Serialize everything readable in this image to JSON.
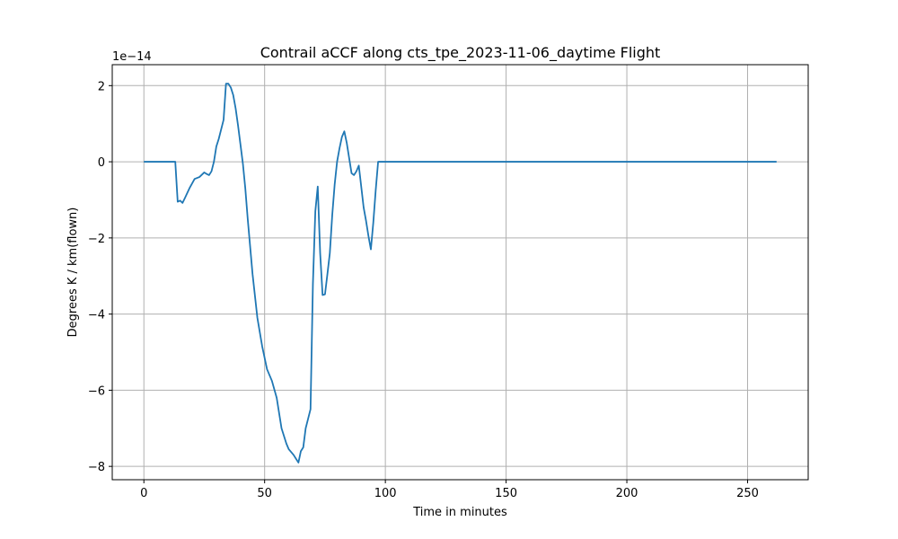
{
  "chart_data": {
    "type": "line",
    "title": "Contrail aCCF along cts_tpe_2023-11-06_daytime Flight",
    "xlabel": "Time in minutes",
    "ylabel": "Degrees K / km(flown)",
    "offset_label": "1e−14",
    "xlim": [
      -13.1,
      275.1
    ],
    "ylim": [
      -8.35,
      2.55
    ],
    "x_ticks": [
      0,
      50,
      100,
      150,
      200,
      250
    ],
    "x_tick_labels": [
      "0",
      "50",
      "100",
      "150",
      "200",
      "250"
    ],
    "y_ticks": [
      -8,
      -6,
      -4,
      -2,
      0,
      2
    ],
    "y_tick_labels": [
      "−8",
      "−6",
      "−4",
      "−2",
      "0",
      "2"
    ],
    "grid": true,
    "colors": {
      "line": "#1f77b4",
      "grid": "#b0b0b0",
      "axes": "#000000"
    },
    "series": [
      {
        "x": [
          0,
          13,
          14,
          15,
          16,
          17,
          19,
          21,
          23,
          25,
          26,
          27,
          28,
          29,
          30,
          31,
          33,
          34,
          35,
          36,
          37,
          38,
          39,
          40,
          41,
          42,
          43,
          45,
          47,
          49,
          51,
          53,
          55,
          56,
          57,
          59,
          60,
          62,
          64,
          65,
          66,
          67,
          68,
          69,
          70,
          71,
          72,
          73,
          74,
          75,
          76,
          77,
          78,
          79,
          80,
          81,
          82,
          83,
          84,
          85,
          86,
          87,
          88,
          89,
          90,
          91,
          92,
          93,
          94,
          95,
          96,
          97,
          98,
          99,
          100,
          120,
          150,
          200,
          262
        ],
        "y": [
          0,
          0,
          -1.05,
          -1.02,
          -1.08,
          -0.95,
          -0.68,
          -0.45,
          -0.4,
          -0.28,
          -0.32,
          -0.35,
          -0.25,
          0.0,
          0.4,
          0.6,
          1.1,
          2.05,
          2.05,
          1.95,
          1.75,
          1.4,
          0.95,
          0.45,
          -0.05,
          -0.7,
          -1.5,
          -2.95,
          -4.1,
          -4.85,
          -5.45,
          -5.75,
          -6.2,
          -6.6,
          -7.0,
          -7.4,
          -7.55,
          -7.7,
          -7.9,
          -7.6,
          -7.5,
          -7.0,
          -6.75,
          -6.5,
          -3.2,
          -1.3,
          -0.65,
          -2.4,
          -3.5,
          -3.48,
          -2.95,
          -2.4,
          -1.4,
          -0.6,
          0.0,
          0.35,
          0.65,
          0.8,
          0.5,
          0.1,
          -0.3,
          -0.35,
          -0.25,
          -0.1,
          -0.65,
          -1.2,
          -1.55,
          -1.95,
          -2.3,
          -1.6,
          -0.75,
          0.0,
          0.0,
          0.0,
          0.0,
          0.0,
          0.0,
          0.0,
          0.0
        ]
      }
    ]
  }
}
